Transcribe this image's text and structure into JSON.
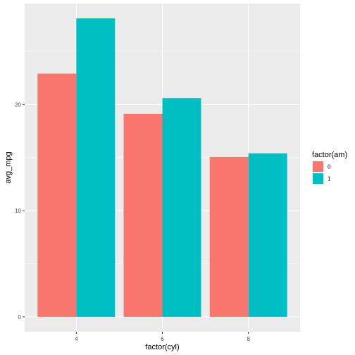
{
  "chart_data": {
    "type": "bar",
    "categories": [
      "4",
      "6",
      "8"
    ],
    "series": [
      {
        "name": "0",
        "color": "#F8766D",
        "values": [
          22.9,
          19.1,
          15.05
        ]
      },
      {
        "name": "1",
        "color": "#00BFC4",
        "values": [
          28.1,
          20.6,
          15.4
        ]
      }
    ],
    "xlabel": "factor(cyl)",
    "ylabel": "avg_mpg",
    "ylim": [
      -1.4,
      29.5
    ],
    "yticks": [
      0,
      10,
      20
    ],
    "legend_title": "factor(am)",
    "legend_position": "right",
    "grid": true,
    "panel_background": "#EBEBEB"
  }
}
